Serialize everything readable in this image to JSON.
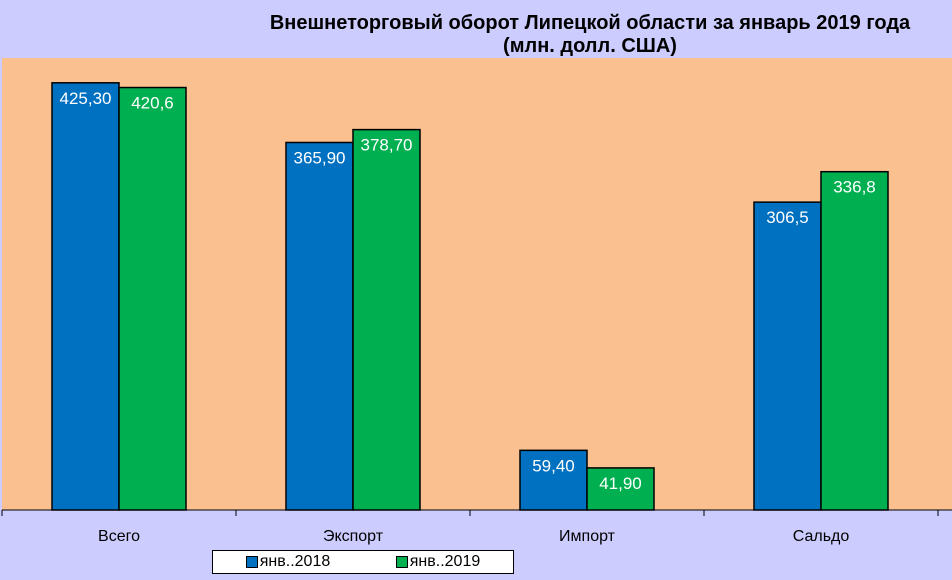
{
  "chart_data": {
    "type": "bar",
    "title": "Внешнеторговый оборот Липецкой области за январь 2019 года",
    "subtitle": "(млн. долл. США)",
    "categories": [
      "Всего",
      "Экспорт",
      "Импорт",
      "Сальдо"
    ],
    "series": [
      {
        "name": "янв..2018",
        "values": [
          425.3,
          365.9,
          59.4,
          306.5
        ],
        "labels": [
          "425,30",
          "365,90",
          "59,40",
          "306,5"
        ],
        "color": "#0070C0"
      },
      {
        "name": "янв..2019",
        "values": [
          420.6,
          378.7,
          41.9,
          336.8
        ],
        "labels": [
          "420,6",
          "378,70",
          "41,90",
          "336,8"
        ],
        "color": "#00B050"
      }
    ],
    "ylim": [
      0,
      450
    ],
    "grid": false,
    "legend": "bottom",
    "plot_background": "#FAC090",
    "background": "#CCCCFF"
  }
}
